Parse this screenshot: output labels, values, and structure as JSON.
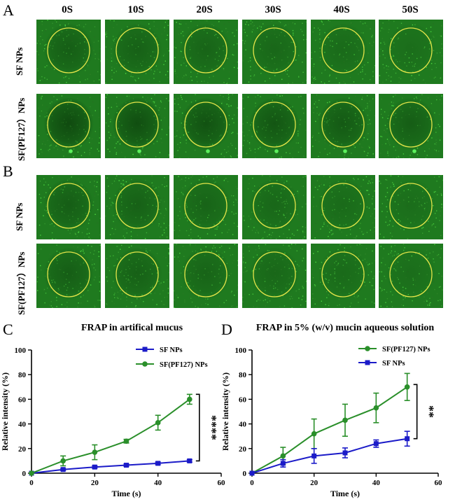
{
  "panels": {
    "A": "A",
    "B": "B",
    "C": "C",
    "D": "D"
  },
  "time_labels": [
    "0S",
    "10S",
    "20S",
    "30S",
    "40S",
    "50S"
  ],
  "row_labels": {
    "a1": "SF NPs",
    "a2": "SF(PF127）NPs",
    "b1": "SF NPs",
    "b2": "SF(PF127）NPs"
  },
  "colors": {
    "tile_bg": "#1f7a1f",
    "circle": "#e5e54a",
    "sf_series": "#1b1bc8",
    "pf_series": "#2a8f2a"
  },
  "chart_data": [
    {
      "type": "line",
      "title": "FRAP  in artifical mucus",
      "xlabel": "Time (s)",
      "ylabel": "Relative intensity (%)",
      "xlim": [
        0,
        60
      ],
      "ylim": [
        0,
        100
      ],
      "xticks": [
        0,
        20,
        40,
        60
      ],
      "yticks": [
        0,
        20,
        40,
        60,
        80,
        100
      ],
      "legend_position": "top-right",
      "significance": "****",
      "series": [
        {
          "name": "SF NPs",
          "marker": "square",
          "color": "#1b1bc8",
          "x": [
            0,
            10,
            20,
            30,
            40,
            50
          ],
          "y": [
            0,
            3,
            5,
            6.5,
            8,
            10
          ],
          "err": [
            0,
            0.8,
            1,
            1,
            1,
            1
          ]
        },
        {
          "name": "SF(PF127) NPs",
          "marker": "circle",
          "color": "#2a8f2a",
          "x": [
            0,
            10,
            20,
            30,
            40,
            50
          ],
          "y": [
            0,
            10,
            17,
            26,
            41,
            60
          ],
          "err": [
            0,
            4,
            6,
            1.5,
            6,
            4
          ]
        }
      ]
    },
    {
      "type": "line",
      "title": "FRAP in 5% (w/v) mucin aqueous solution",
      "xlabel": "Time (s)",
      "ylabel": "Relative intensity (%)",
      "xlim": [
        0,
        60
      ],
      "ylim": [
        0,
        100
      ],
      "xticks": [
        0,
        20,
        40,
        60
      ],
      "yticks": [
        0,
        20,
        40,
        60,
        80,
        100
      ],
      "legend_position": "top-left",
      "significance": "**",
      "series": [
        {
          "name": "SF(PF127) NPs",
          "marker": "circle",
          "color": "#2a8f2a",
          "x": [
            0,
            10,
            20,
            30,
            40,
            50
          ],
          "y": [
            0,
            14,
            32,
            43,
            53,
            70
          ],
          "err": [
            0,
            7,
            12,
            13,
            12,
            11
          ]
        },
        {
          "name": "SF NPs",
          "marker": "square",
          "color": "#1b1bc8",
          "x": [
            0,
            10,
            20,
            30,
            40,
            50
          ],
          "y": [
            0,
            8,
            14,
            16.5,
            24,
            28
          ],
          "err": [
            0,
            3,
            6,
            4,
            3,
            6
          ]
        }
      ]
    }
  ]
}
